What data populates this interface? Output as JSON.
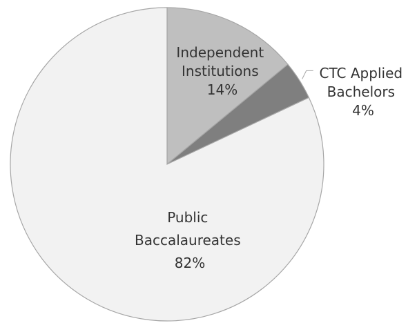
{
  "chart_data": {
    "type": "pie",
    "title": "",
    "categories": [
      "Independent Institutions",
      "CTC Applied Bachelors",
      "Public Baccalaureates"
    ],
    "values": [
      14,
      4,
      82
    ],
    "unit": "%",
    "colors": [
      "#bfbfbf",
      "#7f7f7f",
      "#f2f2f2"
    ],
    "legend": "none",
    "data_labels": [
      {
        "lines": [
          "Independent",
          "Institutions"
        ],
        "value": "14%"
      },
      {
        "lines": [
          "CTC Applied",
          "Bachelors"
        ],
        "value": "4%"
      },
      {
        "lines": [
          "Public",
          "Baccalaureates"
        ],
        "value": "82%"
      }
    ]
  }
}
